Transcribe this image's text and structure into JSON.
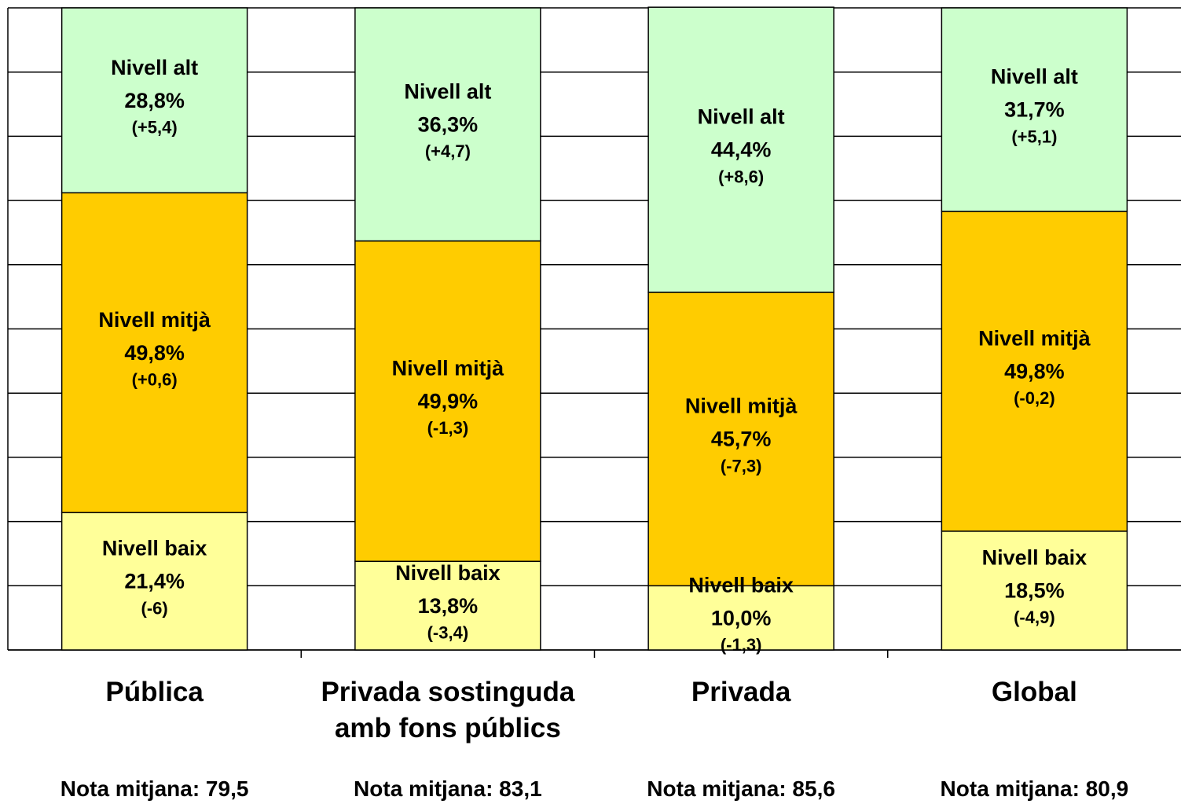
{
  "chart_data": {
    "type": "stacked_bar",
    "categories": [
      "Pública",
      "Privada sostinguda amb fons públics",
      "Privada",
      "Global"
    ],
    "series": [
      {
        "name": "Nivell baix",
        "color": "#ffff99",
        "values": [
          21.4,
          13.8,
          10.0,
          18.5
        ],
        "value_labels": [
          "21,4%",
          "13,8%",
          "10,0%",
          "18,5%"
        ],
        "annotations": [
          "(-6)",
          "(-3,4)",
          "(-1,3)",
          "(-4,9)"
        ]
      },
      {
        "name": "Nivell mitjà",
        "color": "#ffcc00",
        "values": [
          49.8,
          49.9,
          45.7,
          49.8
        ],
        "value_labels": [
          "49,8%",
          "49,9%",
          "45,7%",
          "49,8%"
        ],
        "annotations": [
          "(+0,6)",
          "(-1,3)",
          "(-7,3)",
          "(-0,2)"
        ]
      },
      {
        "name": "Nivell alt",
        "color": "#ccffcc",
        "values": [
          28.8,
          36.3,
          44.4,
          31.7
        ],
        "value_labels": [
          "28,8%",
          "36,3%",
          "44,4%",
          "31,7%"
        ],
        "annotations": [
          "(+5,4)",
          "(+4,7)",
          "(+8,6)",
          "(+5,1)"
        ]
      }
    ],
    "notes": [
      "Nota mitjana: 79,5",
      "Nota mitjana: 83,1",
      "Nota mitjana: 85,6",
      "Nota mitjana: 80,9"
    ],
    "ylim": [
      0,
      100
    ],
    "yticks": [
      0,
      10,
      20,
      30,
      40,
      50,
      60,
      70,
      80,
      90,
      100
    ],
    "grid": true
  }
}
